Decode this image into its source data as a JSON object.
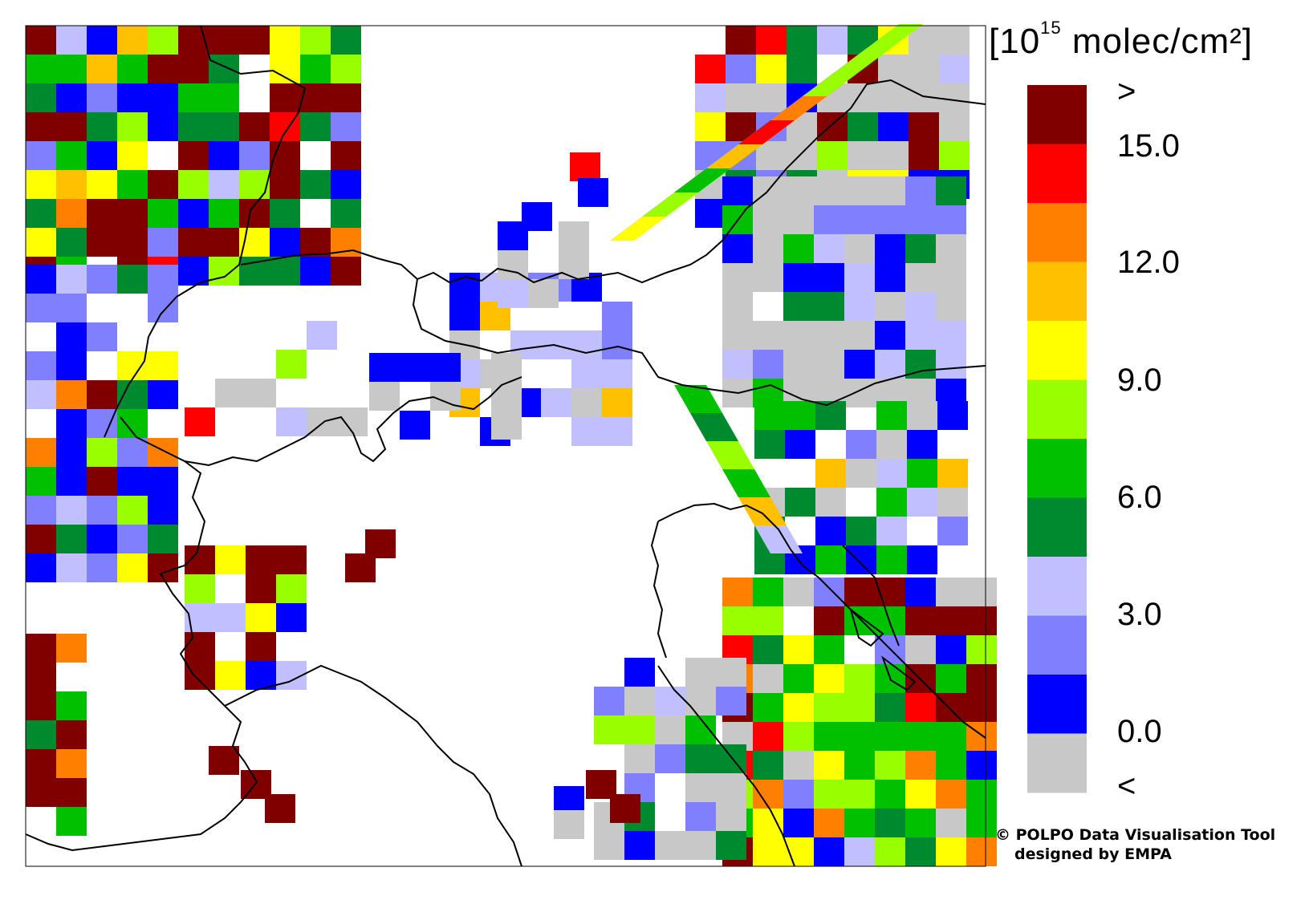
{
  "legend": {
    "unit_prefix": "[10",
    "unit_exponent": "15",
    "unit_suffix": " molec/cm²]",
    "tick_labels": [
      ">",
      "15.0",
      "12.0",
      "9.0",
      "6.0",
      "3.0",
      "0.0",
      "<"
    ],
    "colors": [
      "#800000",
      "#ff0000",
      "#ff8000",
      "#ffc000",
      "#ffff00",
      "#99ff00",
      "#00c000",
      "#008a30",
      "#c0c0ff",
      "#8080ff",
      "#0000ff",
      "#c8c8c8"
    ]
  },
  "credit": {
    "line1": "© POLPO Data Visualisation Tool",
    "line2": "designed by EMPA"
  },
  "map": {
    "background": "#ffffff",
    "coastline_color": "#000000",
    "no_data_color": "#ffffff"
  }
}
